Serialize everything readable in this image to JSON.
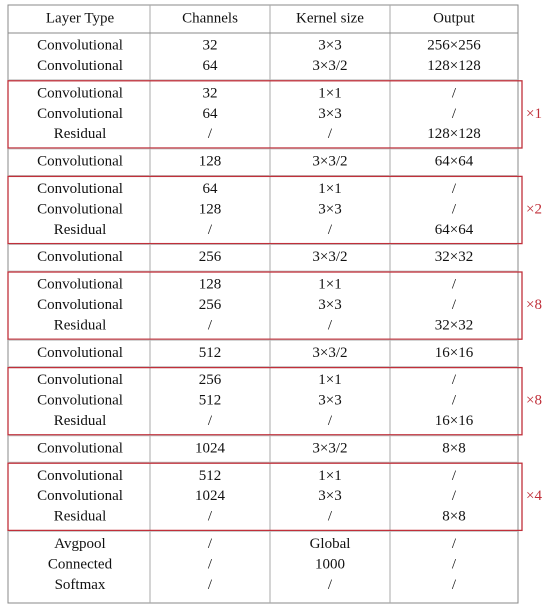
{
  "table": {
    "header": [
      "Layer Type",
      "Channels",
      "Kernel size",
      "Output"
    ],
    "groups": [
      {
        "rows": [
          [
            "Convolutional",
            "32",
            "3×3",
            "256×256"
          ],
          [
            "Convolutional",
            "64",
            "3×3/2",
            "128×128"
          ]
        ]
      },
      {
        "rows": [
          [
            "Convolutional",
            "32",
            "1×1",
            "/"
          ],
          [
            "Convolutional",
            "64",
            "3×3",
            "/"
          ],
          [
            "Residual",
            "/",
            "/",
            "128×128"
          ]
        ],
        "repeat": "×1"
      },
      {
        "rows": [
          [
            "Convolutional",
            "128",
            "3×3/2",
            "64×64"
          ]
        ]
      },
      {
        "rows": [
          [
            "Convolutional",
            "64",
            "1×1",
            "/"
          ],
          [
            "Convolutional",
            "128",
            "3×3",
            "/"
          ],
          [
            "Residual",
            "/",
            "/",
            "64×64"
          ]
        ],
        "repeat": "×2"
      },
      {
        "rows": [
          [
            "Convolutional",
            "256",
            "3×3/2",
            "32×32"
          ]
        ]
      },
      {
        "rows": [
          [
            "Convolutional",
            "128",
            "1×1",
            "/"
          ],
          [
            "Convolutional",
            "256",
            "3×3",
            "/"
          ],
          [
            "Residual",
            "/",
            "/",
            "32×32"
          ]
        ],
        "repeat": "×8"
      },
      {
        "rows": [
          [
            "Convolutional",
            "512",
            "3×3/2",
            "16×16"
          ]
        ]
      },
      {
        "rows": [
          [
            "Convolutional",
            "256",
            "1×1",
            "/"
          ],
          [
            "Convolutional",
            "512",
            "3×3",
            "/"
          ],
          [
            "Residual",
            "/",
            "/",
            "16×16"
          ]
        ],
        "repeat": "×8"
      },
      {
        "rows": [
          [
            "Convolutional",
            "1024",
            "3×3/2",
            "8×8"
          ]
        ]
      },
      {
        "rows": [
          [
            "Convolutional",
            "512",
            "1×1",
            "/"
          ],
          [
            "Convolutional",
            "1024",
            "3×3",
            "/"
          ],
          [
            "Residual",
            "/",
            "/",
            "8×8"
          ]
        ],
        "repeat": "×4"
      },
      {
        "rows": [
          [
            "Avgpool",
            "/",
            "Global",
            "/"
          ],
          [
            "Connected",
            "/",
            "1000",
            "/"
          ],
          [
            "Softmax",
            "/",
            "/",
            "/"
          ]
        ]
      }
    ]
  }
}
